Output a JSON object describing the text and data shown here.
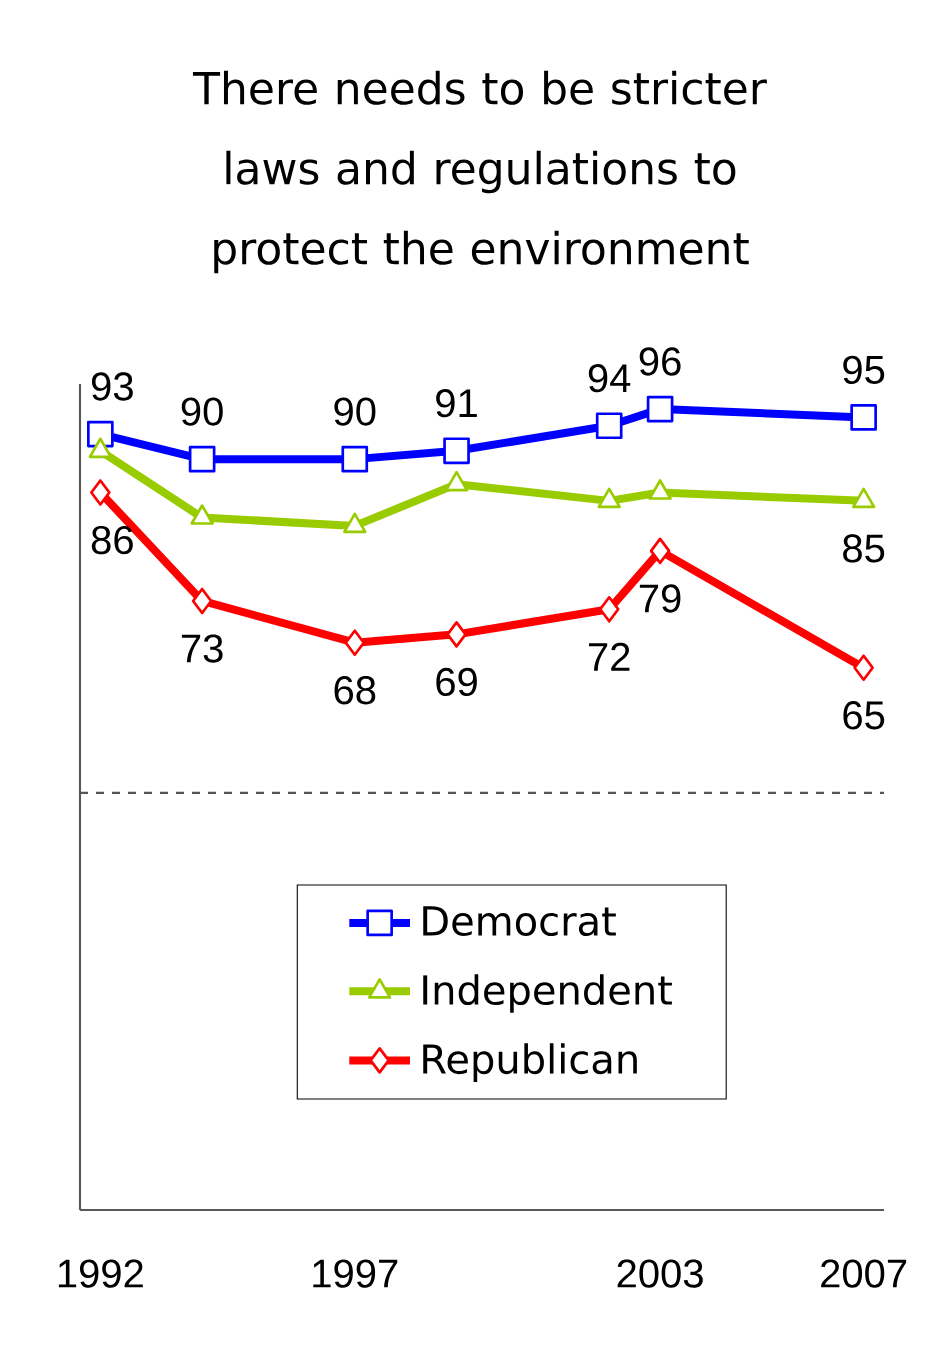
{
  "chart_data": {
    "type": "line",
    "title": "There needs to be stricter laws and regulations to protect the environment",
    "x": [
      1992,
      1994,
      1997,
      1999,
      2002,
      2003,
      2007
    ],
    "xlim": [
      1991.6,
      2007.4
    ],
    "xticks": [
      1992,
      1997,
      2003,
      2007
    ],
    "ylim": [
      0,
      99
    ],
    "tick_labels": "x",
    "legend": "bottom",
    "grid": false,
    "series": [
      {
        "name": "Democrat",
        "color": "#0000ff",
        "marker": "square",
        "values": [
          93,
          90,
          90,
          91,
          94,
          96,
          95
        ],
        "value_labels": [
          "93",
          "90",
          "90",
          "91",
          "94",
          "96",
          "95"
        ]
      },
      {
        "name": "Independent",
        "color": "#99cc00",
        "marker": "triangle",
        "values": [
          91,
          83,
          82,
          87,
          85,
          86,
          85
        ],
        "value_labels": [
          null,
          null,
          null,
          null,
          null,
          null,
          "85"
        ]
      },
      {
        "name": "Republican",
        "color": "#ff0000",
        "marker": "diamond",
        "values": [
          86,
          73,
          68,
          69,
          72,
          79,
          65
        ],
        "value_labels": [
          "86",
          "73",
          "68",
          "69",
          "72",
          "79",
          "65"
        ]
      }
    ],
    "ref_lines": [
      {
        "axis": "y",
        "value": 50,
        "color": "#555555",
        "line_style": "dashed"
      }
    ]
  }
}
